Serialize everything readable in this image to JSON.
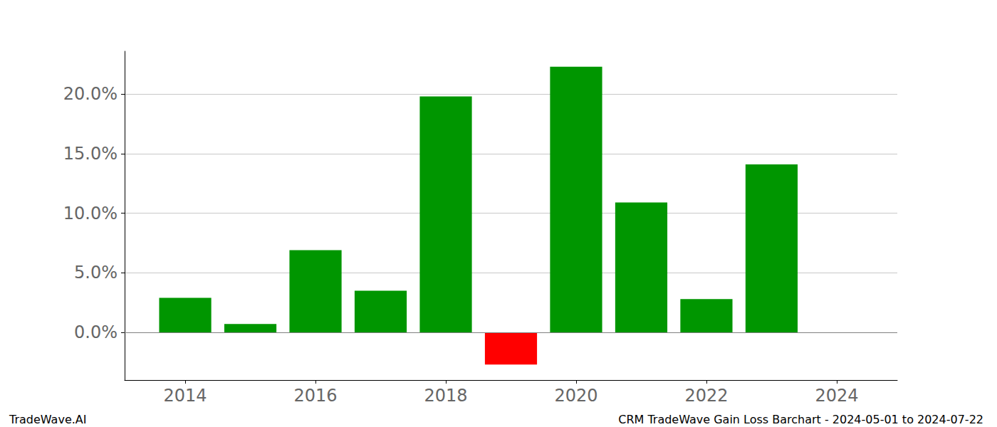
{
  "chart_data": {
    "type": "bar",
    "title": "CRM TradeWave Gain Loss Barchart - 2024-05-01 to 2024-07-22",
    "annotations": [
      "TradeWave.AI"
    ],
    "x": [
      2014,
      2015,
      2016,
      2017,
      2018,
      2019,
      2020,
      2021,
      2022,
      2023
    ],
    "values": [
      2.9,
      0.7,
      6.9,
      3.5,
      19.8,
      -2.7,
      22.3,
      10.9,
      2.8,
      14.1
    ],
    "colors": [
      "#009600",
      "#009600",
      "#009600",
      "#009600",
      "#009600",
      "#ff0000",
      "#009600",
      "#009600",
      "#009600",
      "#009600"
    ],
    "xlim": [
      2013.07,
      2024.93
    ],
    "xticks": [
      2014,
      2016,
      2018,
      2020,
      2022,
      2024
    ],
    "ylim": [
      -4.0,
      23.6
    ],
    "yticks": [
      {
        "value": 0,
        "label": "0.0%"
      },
      {
        "value": 5,
        "label": "5.0%"
      },
      {
        "value": 10,
        "label": "10.0%"
      },
      {
        "value": 15,
        "label": "15.0%"
      },
      {
        "value": 20,
        "label": "20.0%"
      }
    ],
    "grid": true
  }
}
